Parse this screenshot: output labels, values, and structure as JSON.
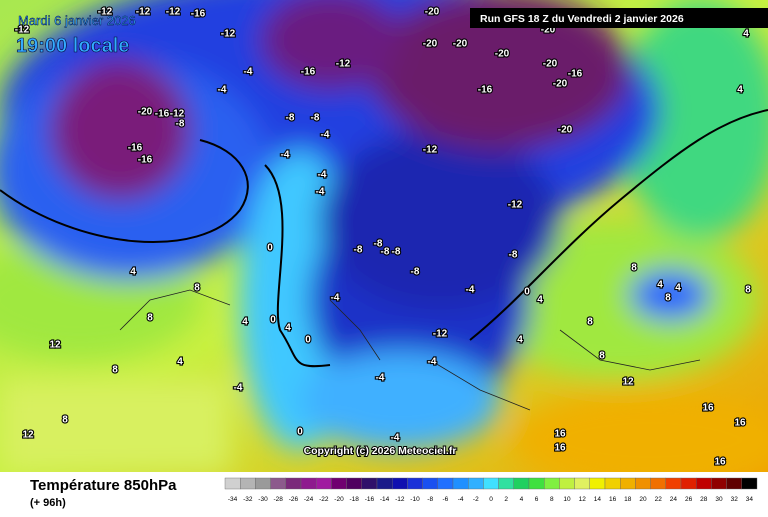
{
  "header": {
    "date": "Mardi 6 janvier 2026",
    "time": "19:00 locale",
    "run": "Run GFS 18 Z du Vendredi 2 janvier 2026"
  },
  "copyright": "Copyright (c) 2026 Meteociel.fr",
  "footer": {
    "title": "Température 850hPa",
    "subtitle": "(+ 96h)"
  },
  "legend": {
    "values": [
      -34,
      -32,
      -30,
      -28,
      -26,
      -24,
      -22,
      -20,
      -18,
      -16,
      -14,
      -12,
      -10,
      -8,
      -6,
      -4,
      -2,
      0,
      2,
      4,
      6,
      8,
      10,
      12,
      14,
      16,
      18,
      20,
      22,
      24,
      26,
      28,
      30,
      32,
      34
    ],
    "colors": [
      "#d0d0d0",
      "#b4b4b4",
      "#9a9a9a",
      "#8c5a8c",
      "#7a2a7a",
      "#8e1a8e",
      "#a01aa0",
      "#700070",
      "#500060",
      "#30106a",
      "#1a1a8a",
      "#1010b0",
      "#1a30d8",
      "#1a50f0",
      "#2070ff",
      "#2090ff",
      "#30b0ff",
      "#40e0ff",
      "#30e0a0",
      "#20d060",
      "#40e040",
      "#80f040",
      "#c0f040",
      "#e0f060",
      "#f0f000",
      "#f0d000",
      "#f0b000",
      "#f09000",
      "#f07000",
      "#f04000",
      "#e02000",
      "#c00000",
      "#900000",
      "#600000",
      "#000000"
    ]
  },
  "map_labels": [
    "-12",
    "-12",
    "-12",
    "-16",
    "-12",
    "-12",
    "-12",
    "-16",
    "-4",
    "-4",
    "-20",
    "-16",
    "-12",
    "-8",
    "-16",
    "-16",
    "-8",
    "-8",
    "-4",
    "-4",
    "-4",
    "-4",
    "-12",
    "-12",
    "-20",
    "-20",
    "-20",
    "-20",
    "-20",
    "-16",
    "-20",
    "-16",
    "-20",
    "-20",
    "-8",
    "-8",
    "-8",
    "-8",
    "-8",
    "-8",
    "0",
    "0",
    "4",
    "8",
    "8",
    "12",
    "0",
    "4",
    "0",
    "-4",
    "4",
    "-12",
    "-4",
    "-4",
    "0",
    "-4",
    "-4",
    "4",
    "8",
    "12",
    "8",
    "8",
    "8",
    "12",
    "16",
    "16",
    "16",
    "16",
    "16",
    "4",
    "4",
    "8",
    "8",
    "8",
    "4",
    "4",
    "4",
    "4",
    "-4"
  ]
}
